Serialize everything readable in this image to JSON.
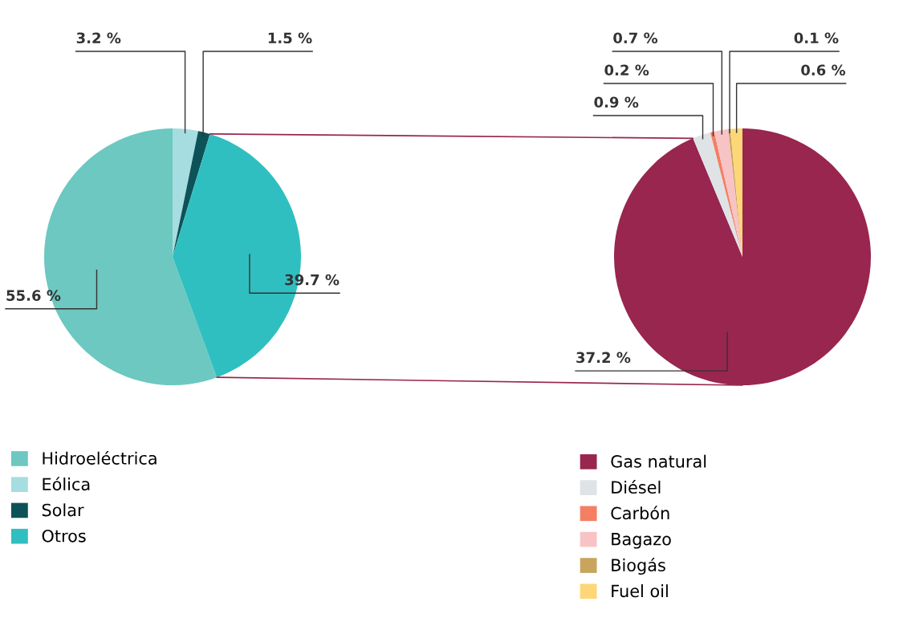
{
  "chart_data": [
    {
      "type": "pie",
      "categories": [
        "Hidroeléctrica",
        "Eólica",
        "Solar",
        "Otros"
      ],
      "values": [
        55.6,
        3.2,
        1.5,
        39.7
      ],
      "colors": [
        "#6cc8c0",
        "#a6dde0",
        "#0d5258",
        "#30bfc0"
      ],
      "value_labels": [
        "55.6 %",
        "3.2 %",
        "1.5 %",
        "39.7 %"
      ],
      "legend": "bottom left"
    },
    {
      "type": "pie",
      "categories": [
        "Gas natural",
        "Diésel",
        "Carbón",
        "Bagazo",
        "Biogás",
        "Fuel oil"
      ],
      "values": [
        37.2,
        0.9,
        0.2,
        0.7,
        0.1,
        0.6
      ],
      "colors": [
        "#98264f",
        "#dfe3e6",
        "#f47f62",
        "#f8c3c4",
        "#c8a45c",
        "#fdd677"
      ],
      "value_labels": [
        "37.2 %",
        "0.9 %",
        "0.2 %",
        "0.7 %",
        "0.1 %",
        "0.6 %"
      ],
      "legend": "bottom"
    }
  ]
}
